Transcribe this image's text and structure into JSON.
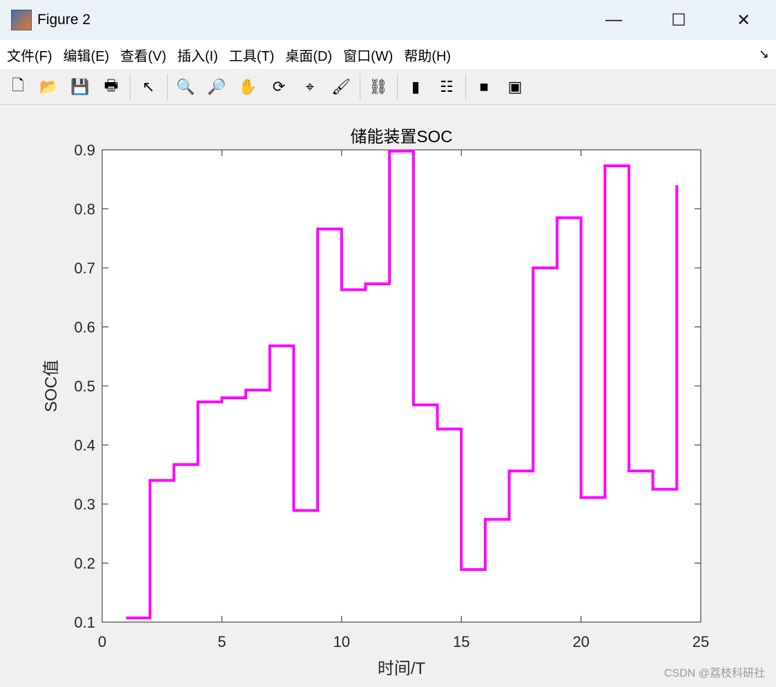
{
  "window": {
    "title": "Figure 2",
    "minimize": "—",
    "maximize": "☐",
    "close": "✕"
  },
  "menu": [
    "文件(F)",
    "编辑(E)",
    "查看(V)",
    "插入(I)",
    "工具(T)",
    "桌面(D)",
    "窗口(W)",
    "帮助(H)"
  ],
  "dock_icon": "dock-arrow-icon",
  "toolbar": [
    {
      "name": "new-figure-icon",
      "glyph": "🗋"
    },
    {
      "name": "open-icon",
      "glyph": "📂"
    },
    {
      "name": "save-icon",
      "glyph": "💾"
    },
    {
      "name": "print-icon",
      "glyph": "🖶"
    },
    {
      "sep": true
    },
    {
      "name": "pointer-icon",
      "glyph": "↖"
    },
    {
      "sep": true
    },
    {
      "name": "zoom-in-icon",
      "glyph": "🔍"
    },
    {
      "name": "zoom-out-icon",
      "glyph": "🔎"
    },
    {
      "name": "pan-icon",
      "glyph": "✋"
    },
    {
      "name": "rotate-icon",
      "glyph": "⟳"
    },
    {
      "name": "data-cursor-icon",
      "glyph": "⌖"
    },
    {
      "name": "brush-icon",
      "glyph": "🖌"
    },
    {
      "sep": true
    },
    {
      "name": "link-icon",
      "glyph": "⛓"
    },
    {
      "sep": true
    },
    {
      "name": "colorbar-icon",
      "glyph": "▮"
    },
    {
      "name": "legend-icon",
      "glyph": "☷"
    },
    {
      "sep": true
    },
    {
      "name": "hide-plot-tools-icon",
      "glyph": "■"
    },
    {
      "name": "show-plot-tools-icon",
      "glyph": "▣"
    }
  ],
  "watermark": "CSDN @荔枝科研社",
  "chart_data": {
    "type": "stairs",
    "title": "储能装置SOC",
    "xlabel": "时间/T",
    "ylabel": "SOC值",
    "xlim": [
      0,
      25
    ],
    "ylim": [
      0.1,
      0.9
    ],
    "xticks": [
      0,
      5,
      10,
      15,
      20,
      25
    ],
    "yticks": [
      0.1,
      0.2,
      0.3,
      0.4,
      0.5,
      0.6,
      0.7,
      0.8,
      0.9
    ],
    "grid": false,
    "color": "#ff00ff",
    "x": [
      1,
      2,
      3,
      4,
      5,
      6,
      7,
      8,
      9,
      10,
      11,
      12,
      13,
      14,
      15,
      16,
      17,
      18,
      19,
      20,
      21,
      22,
      23,
      24
    ],
    "values": [
      0.107,
      0.34,
      0.367,
      0.473,
      0.48,
      0.493,
      0.568,
      0.289,
      0.766,
      0.663,
      0.673,
      0.898,
      0.468,
      0.427,
      0.189,
      0.274,
      0.356,
      0.7,
      0.785,
      0.311,
      0.873,
      0.356,
      0.325,
      0.84
    ]
  }
}
